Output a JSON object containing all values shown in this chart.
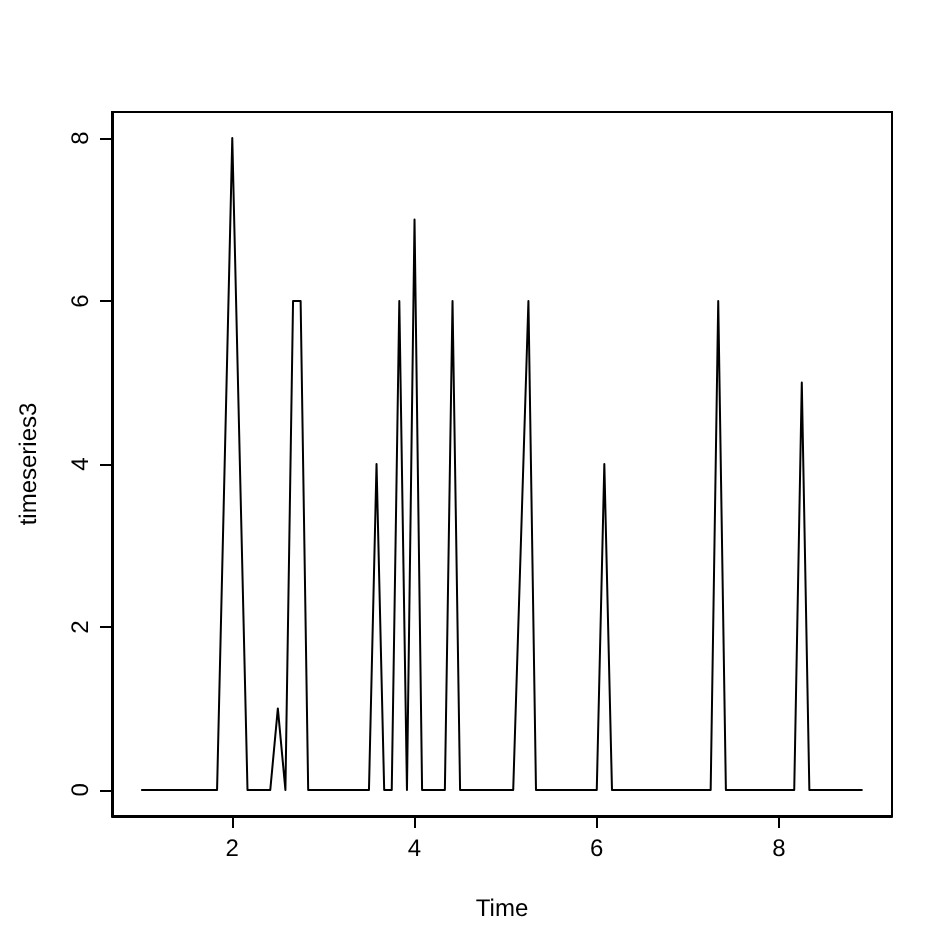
{
  "chart_data": {
    "type": "line",
    "xlabel": "Time",
    "ylabel": "timeseries3",
    "x": [
      1,
      1.833,
      2,
      2.167,
      2.417,
      2.5,
      2.583,
      2.667,
      2.75,
      2.833,
      3.5,
      3.583,
      3.667,
      3.75,
      3.833,
      3.917,
      4,
      4.083,
      4.333,
      4.417,
      4.5,
      5.083,
      5.25,
      5.333,
      6,
      6.083,
      6.167,
      7.25,
      7.333,
      7.417,
      8.167,
      8.25,
      8.333,
      8.917
    ],
    "series": [
      {
        "color": "#000000",
        "values": [
          0,
          0,
          8,
          0,
          0,
          1,
          0,
          6,
          6,
          0,
          0,
          4,
          0,
          0,
          6,
          0,
          7,
          0,
          0,
          6,
          0,
          0,
          6,
          0,
          0,
          4,
          0,
          0,
          6,
          0,
          0,
          5,
          0,
          0
        ]
      }
    ],
    "xlim": [
      0.68,
      9.24
    ],
    "ylim": [
      -0.32,
      8.32
    ],
    "xticks": [
      2,
      4,
      6,
      8
    ],
    "yticks": [
      0,
      2,
      4,
      6,
      8
    ],
    "grid": false,
    "marker": "none",
    "line_style": "solid"
  }
}
